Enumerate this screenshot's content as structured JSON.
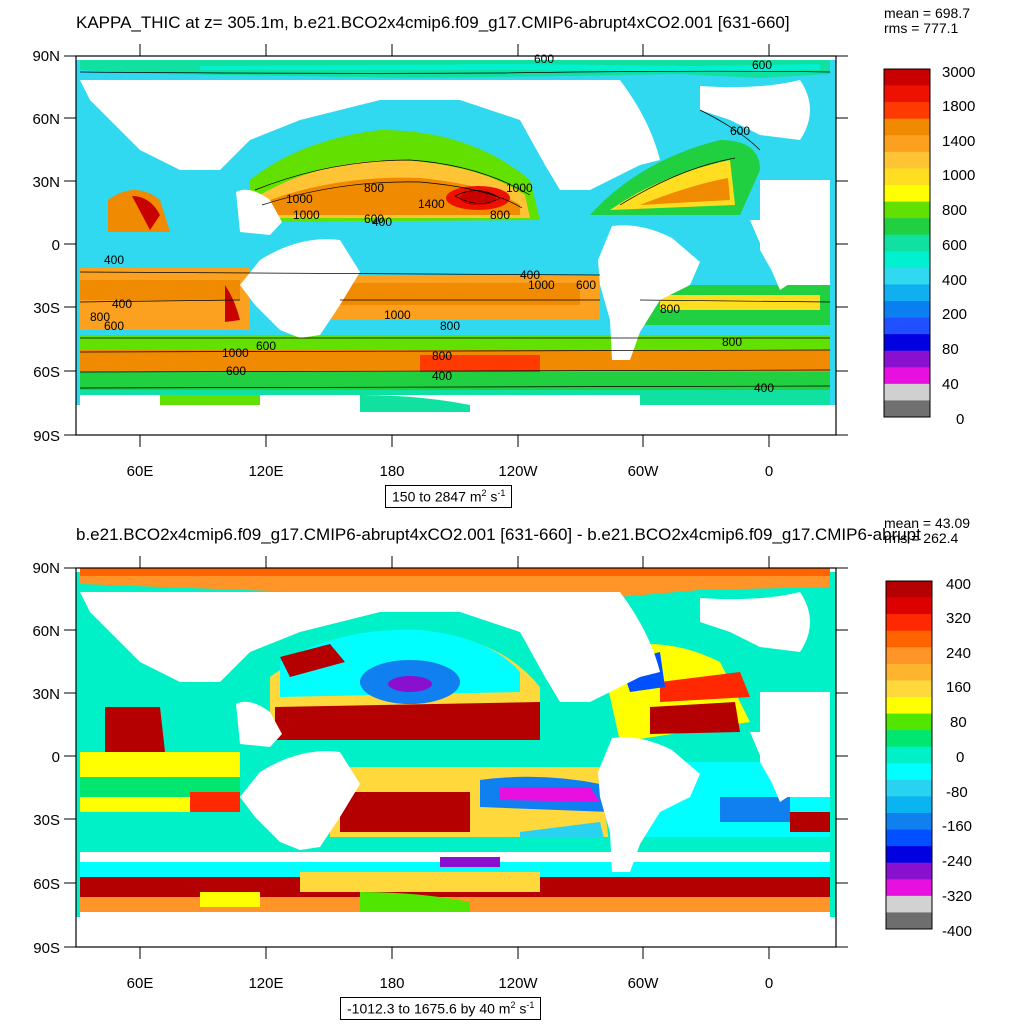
{
  "panels": [
    {
      "title": "KAPPA_THIC at z= 305.1m, b.e21.BCO2x4cmip6.f09_g17.CMIP6-abrupt4xCO2.001 [631-660]",
      "mean_label": "mean = 698.7",
      "rms_label": "rms = 777.1",
      "range_text": "150 to 2847 m",
      "range_unit_sup": "2",
      "range_unit_s": " s",
      "range_unit_sup2": "-1",
      "lat_labels": [
        "90N",
        "60N",
        "30N",
        "0",
        "30S",
        "60S",
        "90S"
      ],
      "lon_labels": [
        "60E",
        "120E",
        "180",
        "120W",
        "60W",
        "0"
      ],
      "colorbar": {
        "labels": [
          "3000",
          "1800",
          "1400",
          "1000",
          "800",
          "600",
          "400",
          "200",
          "80",
          "40",
          "0"
        ],
        "colors": [
          "#c80000",
          "#ee1000",
          "#ff3a00",
          "#f08a00",
          "#fca020",
          "#ffc436",
          "#ffdd20",
          "#ffff00",
          "#62e000",
          "#20d040",
          "#10e0a0",
          "#00f0d0",
          "#30d8f0",
          "#10b0f0",
          "#0a80f0",
          "#2050ff",
          "#0000e0",
          "#8a10d0",
          "#e810e0",
          "#d0d0d0",
          "#707070"
        ]
      },
      "contour_labels": [
        "600",
        "600",
        "600",
        "1000",
        "800",
        "1000",
        "1000",
        "1400",
        "600",
        "400",
        "800",
        "400",
        "400",
        "1000",
        "600",
        "800",
        "400",
        "800",
        "1000",
        "600",
        "800",
        "1000",
        "600",
        "600",
        "800",
        "400",
        "800",
        "400"
      ]
    },
    {
      "title": "b.e21.BCO2x4cmip6.f09_g17.CMIP6-abrupt4xCO2.001 [631-660] - b.e21.BCO2x4cmip6.f09_g17.CMIP6-abrupt",
      "mean_label": "mean = 43.09",
      "rms_label": "rms = 262.4",
      "range_text": "-1012.3 to 1675.6 by 40 m",
      "range_unit_sup": "2",
      "range_unit_s": " s",
      "range_unit_sup2": "-1",
      "lat_labels": [
        "90N",
        "60N",
        "30N",
        "0",
        "30S",
        "60S",
        "90S"
      ],
      "lon_labels": [
        "60E",
        "120E",
        "180",
        "120W",
        "60W",
        "0"
      ],
      "colorbar": {
        "labels": [
          "400",
          "320",
          "240",
          "160",
          "80",
          "0",
          "-80",
          "-160",
          "-240",
          "-320",
          "-400"
        ],
        "colors": [
          "#b40000",
          "#dc0000",
          "#ff2800",
          "#ff6400",
          "#ff9428",
          "#ffb42e",
          "#ffd83c",
          "#ffff00",
          "#50e600",
          "#00e66e",
          "#00f0c8",
          "#00ffff",
          "#28d2f0",
          "#0ab4f0",
          "#1080f0",
          "#0050ff",
          "#0000e0",
          "#8a10d0",
          "#e810e0",
          "#d2d2d2",
          "#6e6e6e"
        ]
      }
    }
  ]
}
